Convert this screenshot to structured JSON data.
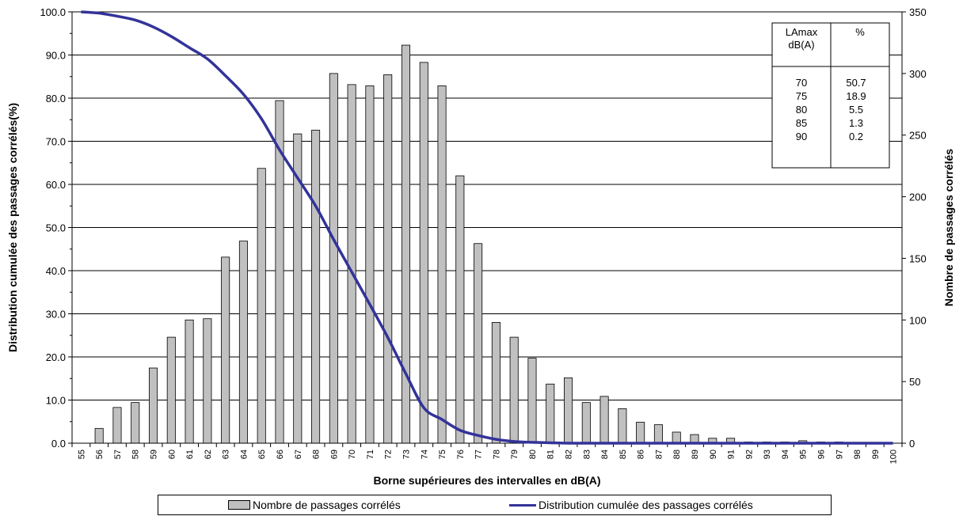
{
  "chart_data": {
    "type": "bar",
    "xlabel": "Borne supérieures des intervalles en dB(A)",
    "ylabel_left": "Distribution cumulée des passages corrélés(%)",
    "ylabel_right": "Nombre de passages corrélés",
    "ylim_left": [
      0,
      100
    ],
    "ylim_right": [
      0,
      350
    ],
    "yticks_left": [
      "0.0",
      "10.0",
      "20.0",
      "30.0",
      "40.0",
      "50.0",
      "60.0",
      "70.0",
      "80.0",
      "90.0",
      "100.0"
    ],
    "yticks_right": [
      "0",
      "50",
      "100",
      "150",
      "200",
      "250",
      "300",
      "350"
    ],
    "categories": [
      "55",
      "56",
      "57",
      "58",
      "59",
      "60",
      "61",
      "62",
      "63",
      "64",
      "65",
      "66",
      "67",
      "68",
      "69",
      "70",
      "71",
      "72",
      "73",
      "74",
      "75",
      "76",
      "77",
      "78",
      "79",
      "80",
      "81",
      "82",
      "83",
      "84",
      "85",
      "86",
      "87",
      "88",
      "89",
      "90",
      "91",
      "92",
      "93",
      "94",
      "95",
      "96",
      "97",
      "98",
      "99",
      "100"
    ],
    "grid": "horizontal",
    "series": [
      {
        "name": "Nombre de passages corrélés",
        "kind": "bar",
        "axis": "right",
        "color": "#c0c0c0",
        "values": [
          0,
          12,
          29,
          33,
          61,
          86,
          100,
          101,
          151,
          164,
          223,
          278,
          251,
          254,
          300,
          291,
          290,
          299,
          323,
          309,
          290,
          217,
          162,
          98,
          86,
          69,
          48,
          53,
          33,
          38,
          28,
          17,
          15,
          9,
          7,
          4,
          4,
          1,
          1,
          1,
          2,
          1,
          1,
          0,
          0,
          0
        ]
      },
      {
        "name": "Distribution cumulée des passages corrélés",
        "kind": "line",
        "axis": "left",
        "color": "#33339a",
        "values": [
          100,
          99.7,
          99.0,
          98.1,
          96.5,
          94.3,
          91.7,
          89.1,
          85.2,
          80.9,
          75.2,
          68.0,
          61.5,
          55.0,
          47.2,
          39.7,
          32.2,
          24.5,
          16.1,
          8.2,
          5.5,
          3.0,
          1.8,
          0.9,
          0.4,
          0.2,
          0.1,
          0,
          0,
          0,
          0,
          0,
          0,
          0,
          0,
          0,
          0,
          0,
          0,
          0,
          0,
          0,
          0,
          0,
          0,
          0
        ]
      }
    ],
    "table": {
      "headers": [
        "LAmax\ndB(A)",
        "%"
      ],
      "header_line1": "LAmax",
      "header_line2": "dB(A)",
      "header_pct": "%",
      "rows": [
        [
          "70",
          "50.7"
        ],
        [
          "75",
          "18.9"
        ],
        [
          "80",
          "5.5"
        ],
        [
          "85",
          "1.3"
        ],
        [
          "90",
          "0.2"
        ]
      ]
    },
    "legend_position": "bottom"
  },
  "legend": {
    "bar_label": "Nombre de passages corrélés",
    "line_label": "Distribution cumulée des passages corrélés"
  }
}
